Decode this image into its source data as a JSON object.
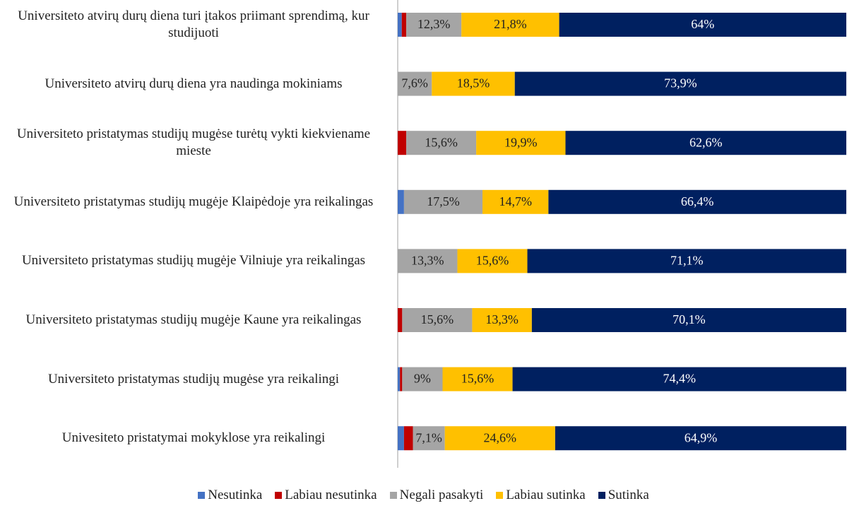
{
  "chart_data": {
    "type": "stacked_bar_horizontal",
    "categories": [
      "Universiteto atvirų durų diena turi įtakos priimant sprendimą, kur studijuoti",
      "Universiteto atvirų durų diena yra naudinga mokiniams",
      "Universiteto pristatymas studijų mugėse turėtų vykti kiekviename mieste",
      "Universiteto pristatymas studijų mugėje Klaipėdoje yra reikalingas",
      "Universiteto pristatymas studijų mugėje Vilniuje yra reikalingas",
      "Universiteto pristatymas studijų mugėje Kaune yra reikalingas",
      "Universiteto pristatymas studijų mugėse yra reikalingi",
      "Univesiteto pristatymai mokyklose yra reikalingi"
    ],
    "xlim": [
      0,
      100
    ],
    "legend": "bottom",
    "series": [
      {
        "name": "Nesutinka",
        "color": "#4472c4",
        "values": [
          0.9,
          0,
          0,
          1.4,
          0,
          0,
          0.5,
          1.4
        ]
      },
      {
        "name": "Labiau nesutinka",
        "color": "#c00000",
        "values": [
          1.0,
          0,
          1.9,
          0,
          0,
          1.0,
          0.5,
          2.0
        ]
      },
      {
        "name": "Negali pasakyti",
        "color": "#a5a5a5",
        "values": [
          12.3,
          7.6,
          15.6,
          17.5,
          13.3,
          15.6,
          9,
          7.1
        ],
        "value_labels": [
          "12,3%",
          "7,6%",
          "15,6%",
          "17,5%",
          "13,3%",
          "15,6%",
          "9%",
          "7,1%"
        ]
      },
      {
        "name": "Labiau sutinka",
        "color": "#ffc000",
        "values": [
          21.8,
          18.5,
          19.9,
          14.7,
          15.6,
          13.3,
          15.6,
          24.6
        ],
        "value_labels": [
          "21,8%",
          "18,5%",
          "19,9%",
          "14,7%",
          "15,6%",
          "13,3%",
          "15,6%",
          "24,6%"
        ]
      },
      {
        "name": "Sutinka",
        "color": "#002060",
        "values": [
          64,
          73.9,
          62.6,
          66.4,
          71.1,
          70.1,
          74.4,
          64.9
        ],
        "value_labels": [
          "64%",
          "73,9%",
          "62,6%",
          "66,4%",
          "71,1%",
          "70,1%",
          "74,4%",
          "64,9%"
        ],
        "label_color": "#ffffff"
      }
    ]
  }
}
